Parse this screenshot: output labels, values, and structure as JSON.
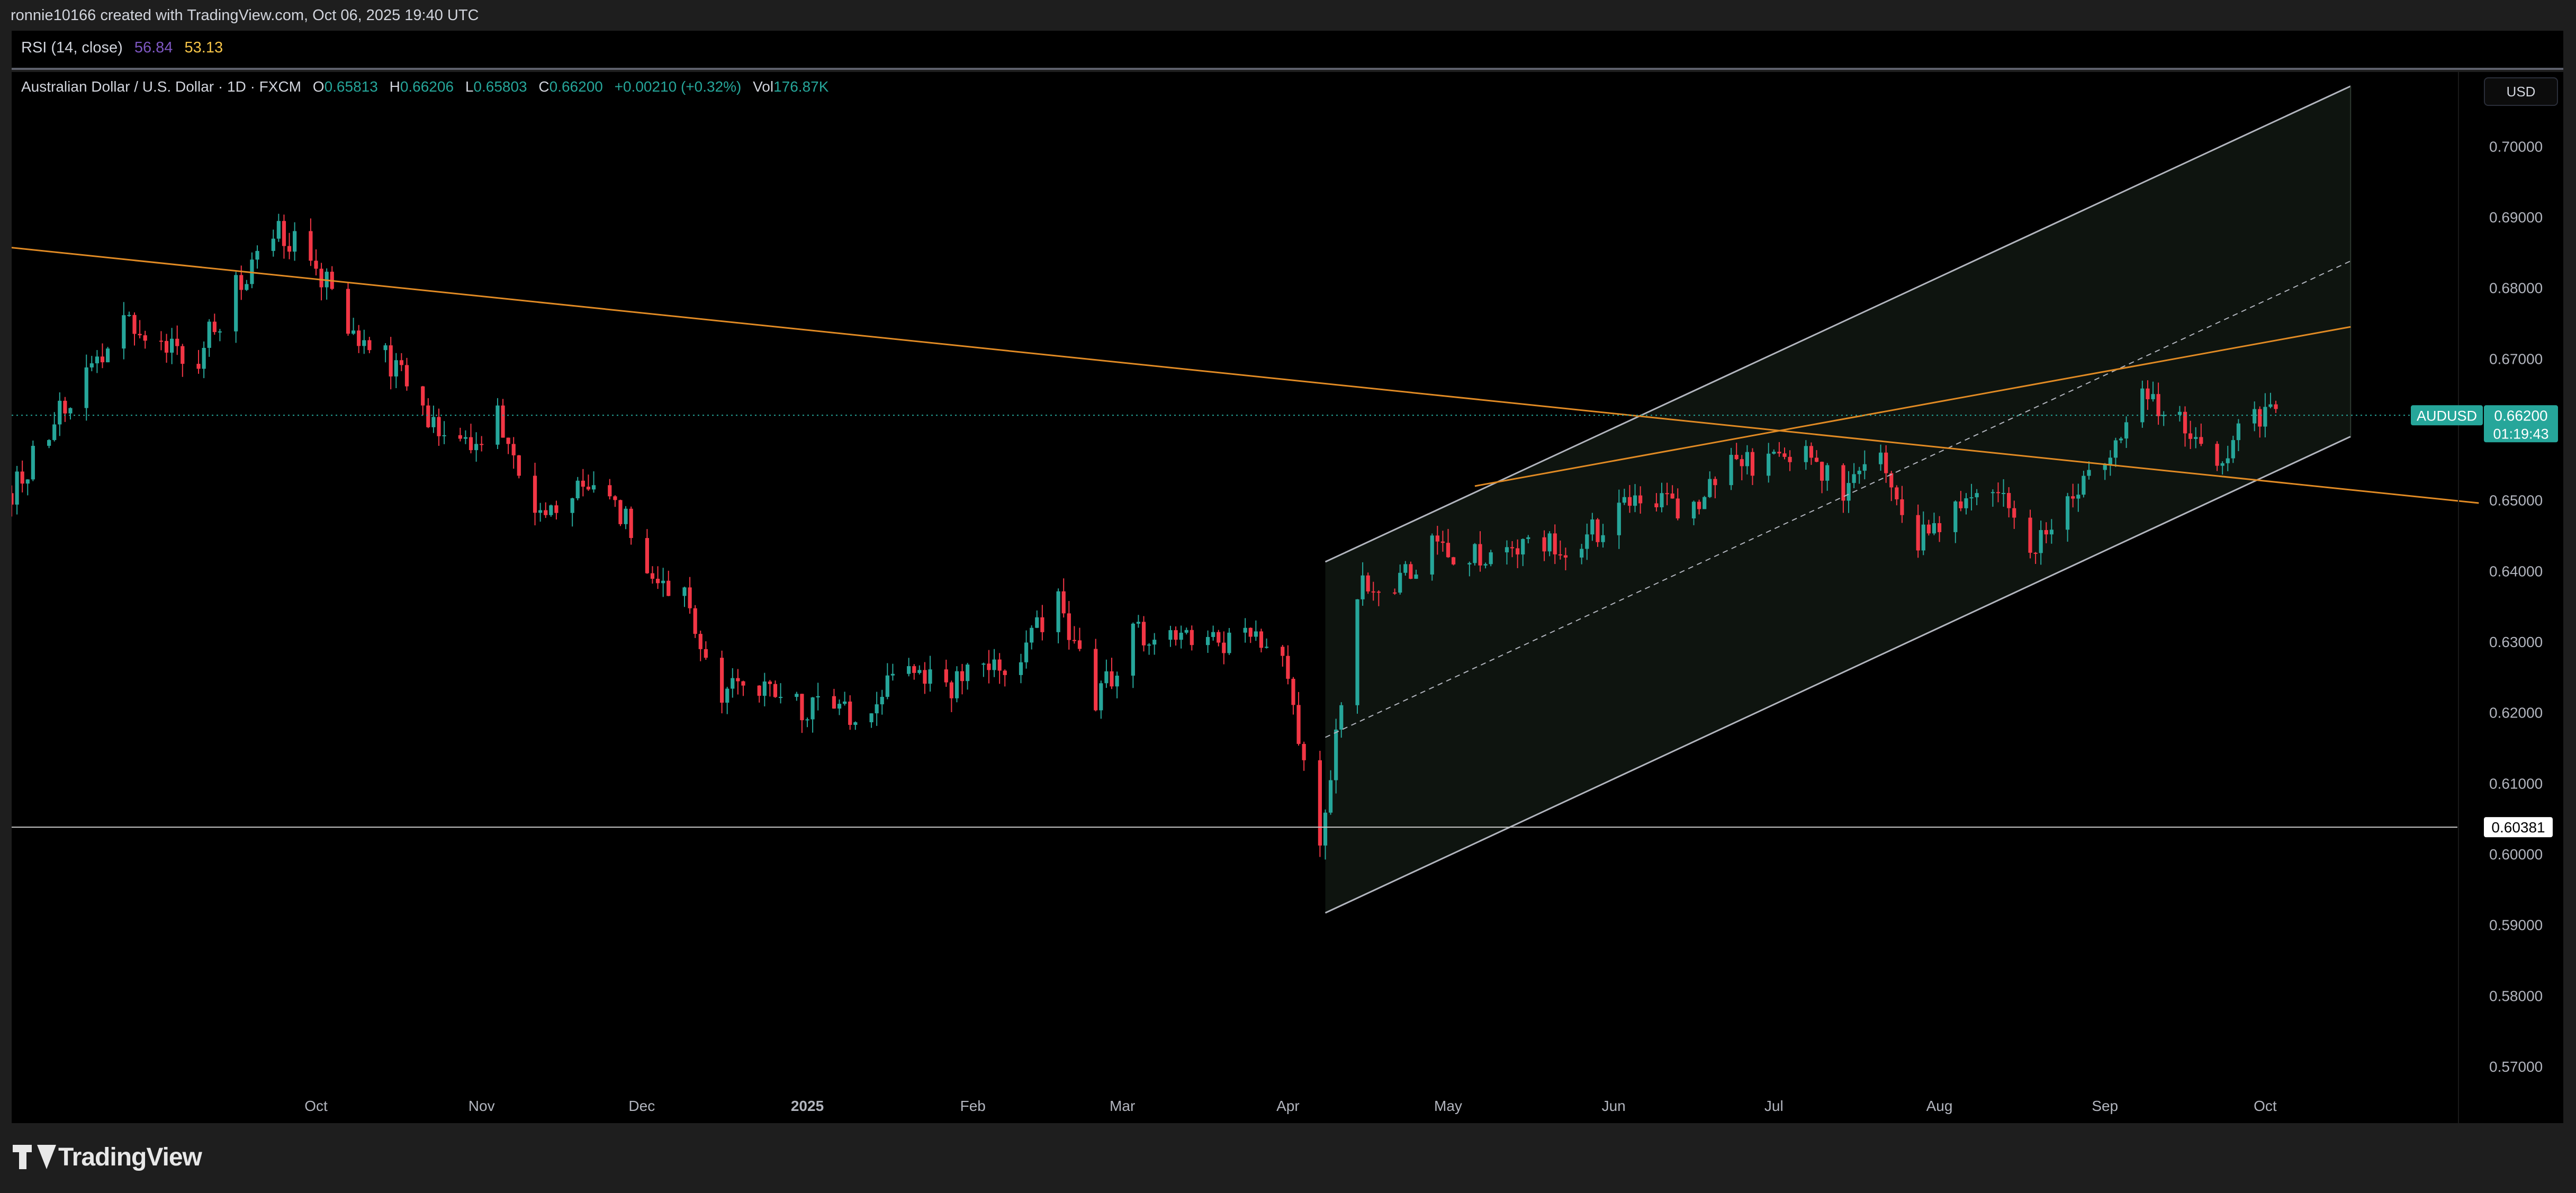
{
  "header": {
    "attribution": "ronnie10166 created with TradingView.com, Oct 06, 2025 19:40 UTC"
  },
  "rsi": {
    "label": "RSI (14, close)",
    "value1": "56.84",
    "value2": "53.13",
    "color1": "#7e57c2",
    "color2": "#f7c548"
  },
  "legend": {
    "symbol": "Australian Dollar / U.S. Dollar · 1D · FXCM",
    "o_label": "O",
    "o": "0.65813",
    "h_label": "H",
    "h": "0.66206",
    "l_label": "L",
    "l": "0.65803",
    "c_label": "C",
    "c": "0.66200",
    "change": "+0.00210 (+0.32%)",
    "vol_label": "Vol",
    "vol": "176.87K"
  },
  "currency_button": "USD",
  "footer": {
    "brand": "TradingView"
  },
  "chart_data": {
    "type": "candlestick",
    "symbol": "AUDUSD",
    "ylim": [
      0.562,
      0.7105
    ],
    "y_ticks": [
      "0.70000",
      "0.69000",
      "0.68000",
      "0.67000",
      "0.66000",
      "0.65000",
      "0.64000",
      "0.63000",
      "0.62000",
      "0.61000",
      "0.60000",
      "0.59000",
      "0.58000",
      "0.57000"
    ],
    "x_ticks": [
      {
        "label": "Oct",
        "date": "2024-10-01"
      },
      {
        "label": "Nov",
        "date": "2024-11-01"
      },
      {
        "label": "Dec",
        "date": "2024-12-01"
      },
      {
        "label": "2025",
        "date": "2025-01-01"
      },
      {
        "label": "Feb",
        "date": "2025-02-01"
      },
      {
        "label": "Mar",
        "date": "2025-03-01"
      },
      {
        "label": "Apr",
        "date": "2025-04-01"
      },
      {
        "label": "May",
        "date": "2025-05-01"
      },
      {
        "label": "Jun",
        "date": "2025-06-01"
      },
      {
        "label": "Jul",
        "date": "2025-07-01"
      },
      {
        "label": "Aug",
        "date": "2025-08-01"
      },
      {
        "label": "Sep",
        "date": "2025-09-01"
      },
      {
        "label": "Oct",
        "date": "2025-10-01"
      }
    ],
    "x_range": [
      "2024-08-05",
      "2025-11-06"
    ],
    "last_price": {
      "label": "AUDUSD",
      "value": "0.66200",
      "countdown": "01:19:43"
    },
    "horizontal_line": {
      "value": "0.60381",
      "color": "#c9c9c9"
    },
    "grid": false,
    "up_color": "#26a69a",
    "down_color": "#f23645",
    "close_path": [
      {
        "date": "2024-08-05",
        "close": 0.651
      },
      {
        "date": "2024-08-12",
        "close": 0.66
      },
      {
        "date": "2024-08-19",
        "close": 0.668
      },
      {
        "date": "2024-08-26",
        "close": 0.676
      },
      {
        "date": "2024-09-02",
        "close": 0.671
      },
      {
        "date": "2024-09-09",
        "close": 0.6705
      },
      {
        "date": "2024-09-16",
        "close": 0.68
      },
      {
        "date": "2024-09-23",
        "close": 0.688
      },
      {
        "date": "2024-09-30",
        "close": 0.685
      },
      {
        "date": "2024-10-07",
        "close": 0.674
      },
      {
        "date": "2024-10-14",
        "close": 0.67
      },
      {
        "date": "2024-10-21",
        "close": 0.663
      },
      {
        "date": "2024-10-28",
        "close": 0.657
      },
      {
        "date": "2024-11-04",
        "close": 0.662
      },
      {
        "date": "2024-11-11",
        "close": 0.648
      },
      {
        "date": "2024-11-18",
        "close": 0.651
      },
      {
        "date": "2024-11-25",
        "close": 0.652
      },
      {
        "date": "2024-12-02",
        "close": 0.64
      },
      {
        "date": "2024-12-09",
        "close": 0.637
      },
      {
        "date": "2024-12-16",
        "close": 0.623
      },
      {
        "date": "2024-12-23",
        "close": 0.623
      },
      {
        "date": "2024-12-30",
        "close": 0.621
      },
      {
        "date": "2025-01-06",
        "close": 0.62
      },
      {
        "date": "2025-01-13",
        "close": 0.62
      },
      {
        "date": "2025-01-20",
        "close": 0.628
      },
      {
        "date": "2025-01-27",
        "close": 0.623
      },
      {
        "date": "2025-02-03",
        "close": 0.626
      },
      {
        "date": "2025-02-10",
        "close": 0.628
      },
      {
        "date": "2025-02-17",
        "close": 0.636
      },
      {
        "date": "2025-02-24",
        "close": 0.621
      },
      {
        "date": "2025-03-03",
        "close": 0.632
      },
      {
        "date": "2025-03-10",
        "close": 0.63
      },
      {
        "date": "2025-03-17",
        "close": 0.63
      },
      {
        "date": "2025-03-24",
        "close": 0.63
      },
      {
        "date": "2025-03-31",
        "close": 0.63
      },
      {
        "date": "2025-04-07",
        "close": 0.6
      },
      {
        "date": "2025-04-14",
        "close": 0.637
      },
      {
        "date": "2025-04-21",
        "close": 0.639
      },
      {
        "date": "2025-04-28",
        "close": 0.643
      },
      {
        "date": "2025-05-05",
        "close": 0.643
      },
      {
        "date": "2025-05-12",
        "close": 0.642
      },
      {
        "date": "2025-05-19",
        "close": 0.644
      },
      {
        "date": "2025-05-26",
        "close": 0.644
      },
      {
        "date": "2025-06-02",
        "close": 0.649
      },
      {
        "date": "2025-06-09",
        "close": 0.65
      },
      {
        "date": "2025-06-16",
        "close": 0.648
      },
      {
        "date": "2025-06-23",
        "close": 0.655
      },
      {
        "date": "2025-06-30",
        "close": 0.655
      },
      {
        "date": "2025-07-07",
        "close": 0.656
      },
      {
        "date": "2025-07-14",
        "close": 0.652
      },
      {
        "date": "2025-07-21",
        "close": 0.657
      },
      {
        "date": "2025-07-28",
        "close": 0.644
      },
      {
        "date": "2025-08-04",
        "close": 0.65
      },
      {
        "date": "2025-08-11",
        "close": 0.652
      },
      {
        "date": "2025-08-18",
        "close": 0.643
      },
      {
        "date": "2025-08-25",
        "close": 0.651
      },
      {
        "date": "2025-09-01",
        "close": 0.656
      },
      {
        "date": "2025-09-08",
        "close": 0.665
      },
      {
        "date": "2025-09-15",
        "close": 0.661
      },
      {
        "date": "2025-09-22",
        "close": 0.655
      },
      {
        "date": "2025-09-29",
        "close": 0.662
      },
      {
        "date": "2025-10-06",
        "close": 0.662
      }
    ],
    "drawings": [
      {
        "type": "trend_line",
        "color": "#e08a24",
        "points": [
          {
            "date": "2024-08-01",
            "price": 0.686
          },
          {
            "date": "2025-11-10",
            "price": 0.6496
          }
        ]
      },
      {
        "type": "trend_line",
        "color": "#e08a24",
        "points": [
          {
            "date": "2025-05-06",
            "price": 0.652
          },
          {
            "date": "2025-10-17",
            "price": 0.6745
          }
        ]
      },
      {
        "type": "parallel_channel",
        "line_color": "#b2b5be",
        "fill": "#0e140f",
        "upper": [
          {
            "date": "2025-04-08",
            "price": 0.6413
          },
          {
            "date": "2025-10-17",
            "price": 0.7085
          }
        ],
        "lower": [
          {
            "date": "2025-04-08",
            "price": 0.5917
          },
          {
            "date": "2025-10-17",
            "price": 0.659
          }
        ],
        "median": [
          {
            "date": "2025-04-08",
            "price": 0.6165
          },
          {
            "date": "2025-10-17",
            "price": 0.6838
          }
        ]
      }
    ]
  }
}
